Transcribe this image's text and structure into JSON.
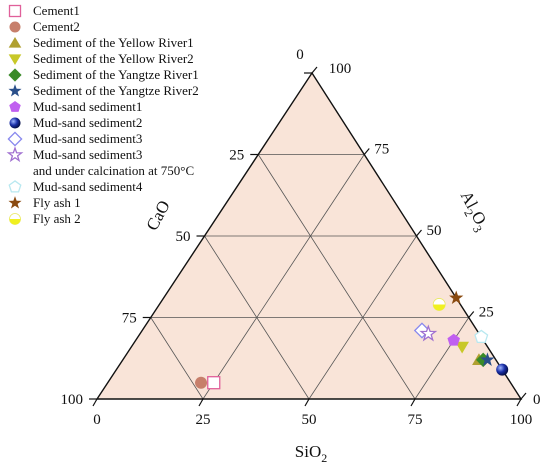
{
  "chart_data": {
    "type": "ternary",
    "axes": {
      "bottom": {
        "label": "SiO",
        "sub": "2"
      },
      "left": {
        "label": "CaO",
        "sub": ""
      },
      "right": {
        "label": "Al",
        "sub": "2",
        "label2": "O",
        "sub2": "3"
      }
    },
    "ticks": {
      "bottom": [
        "0",
        "25",
        "50",
        "75",
        "100"
      ],
      "left": [
        "0",
        "25",
        "50",
        "75",
        "100"
      ],
      "right": [
        "0",
        "25",
        "50",
        "75",
        "100"
      ]
    },
    "fill_color": "#f9e4d8",
    "grid": true,
    "legend_position": "top-left",
    "series": [
      {
        "name": "Cement1",
        "marker": "square",
        "color": "#e0609a",
        "filled": false,
        "points": [
          {
            "SiO2": 25,
            "CaO": 70,
            "Al2O3": 5
          }
        ]
      },
      {
        "name": "Cement2",
        "marker": "circle",
        "color": "#c77f6b",
        "filled": true,
        "points": [
          {
            "SiO2": 22,
            "CaO": 73,
            "Al2O3": 5
          }
        ]
      },
      {
        "name": "Sediment of the Yellow River1",
        "marker": "triangle-up",
        "color": "#b0a030",
        "filled": true,
        "points": [
          {
            "SiO2": 84,
            "CaO": 4,
            "Al2O3": 12
          }
        ]
      },
      {
        "name": "Sediment of the Yellow River2",
        "marker": "triangle-down",
        "color": "#c8c828",
        "filled": true,
        "points": [
          {
            "SiO2": 78,
            "CaO": 6,
            "Al2O3": 16
          }
        ]
      },
      {
        "name": "Sediment of the Yangtze River1",
        "marker": "diamond",
        "color": "#3a8a28",
        "filled": true,
        "points": [
          {
            "SiO2": 85,
            "CaO": 3,
            "Al2O3": 12
          }
        ]
      },
      {
        "name": "Sediment of the Yangtze River2",
        "marker": "star",
        "color": "#2a4f8a",
        "filled": true,
        "points": [
          {
            "SiO2": 86,
            "CaO": 2,
            "Al2O3": 12
          }
        ]
      },
      {
        "name": "Mud-sand sediment1",
        "marker": "pentagon",
        "color": "#c060f0",
        "filled": true,
        "points": [
          {
            "SiO2": 75,
            "CaO": 7,
            "Al2O3": 18
          }
        ]
      },
      {
        "name": "Mud-sand sediment2",
        "marker": "sphere",
        "color": "#1a2fa8",
        "filled": true,
        "points": [
          {
            "SiO2": 91,
            "CaO": 0,
            "Al2O3": 9
          }
        ]
      },
      {
        "name": "Mud-sand sediment3",
        "marker": "diamond",
        "color": "#8888ee",
        "filled": false,
        "points": [
          {
            "SiO2": 66,
            "CaO": 13,
            "Al2O3": 21
          }
        ]
      },
      {
        "name": "Mud-sand sediment3",
        "name2": "and under calcination at 750°C",
        "marker": "star",
        "color": "#a070d0",
        "filled": false,
        "points": [
          {
            "SiO2": 68,
            "CaO": 12,
            "Al2O3": 20
          }
        ]
      },
      {
        "name": "Mud-sand sediment4",
        "marker": "pentagon",
        "color": "#b8e8f0",
        "filled": false,
        "points": [
          {
            "SiO2": 81,
            "CaO": 0,
            "Al2O3": 19
          }
        ]
      },
      {
        "name": "Fly ash 1",
        "marker": "star",
        "color": "#8a4a10",
        "filled": true,
        "points": [
          {
            "SiO2": 69,
            "CaO": 0,
            "Al2O3": 31
          }
        ]
      },
      {
        "name": "Fly ash 2",
        "marker": "circle-half",
        "color": "#f0f020",
        "filled": true,
        "points": [
          {
            "SiO2": 66,
            "CaO": 5,
            "Al2O3": 29
          }
        ]
      }
    ]
  }
}
